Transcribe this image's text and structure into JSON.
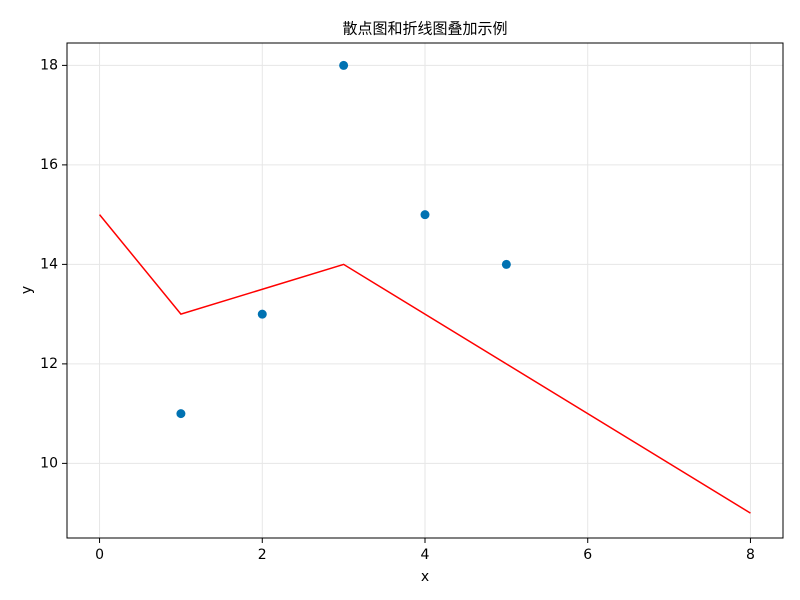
{
  "chart_data": {
    "type": "scatter",
    "title": "散点图和折线图叠加示例",
    "x_label": "x",
    "y_label": "y",
    "series": [
      {
        "type": "scatter",
        "color": "#0072b2",
        "x": [
          1,
          2,
          3,
          4,
          5
        ],
        "values": [
          11,
          13,
          18,
          15,
          14
        ]
      },
      {
        "type": "line",
        "color": "#ff0000",
        "x": [
          0,
          1,
          3,
          8
        ],
        "values": [
          15,
          13,
          14,
          9
        ]
      }
    ],
    "xlim": [
      -0.4,
      8.4
    ],
    "xticks": [
      0,
      2,
      4,
      6,
      8
    ],
    "ylim": [
      8.5,
      18.45
    ],
    "yticks": [
      10,
      12,
      14,
      16,
      18
    ],
    "grid": true
  }
}
